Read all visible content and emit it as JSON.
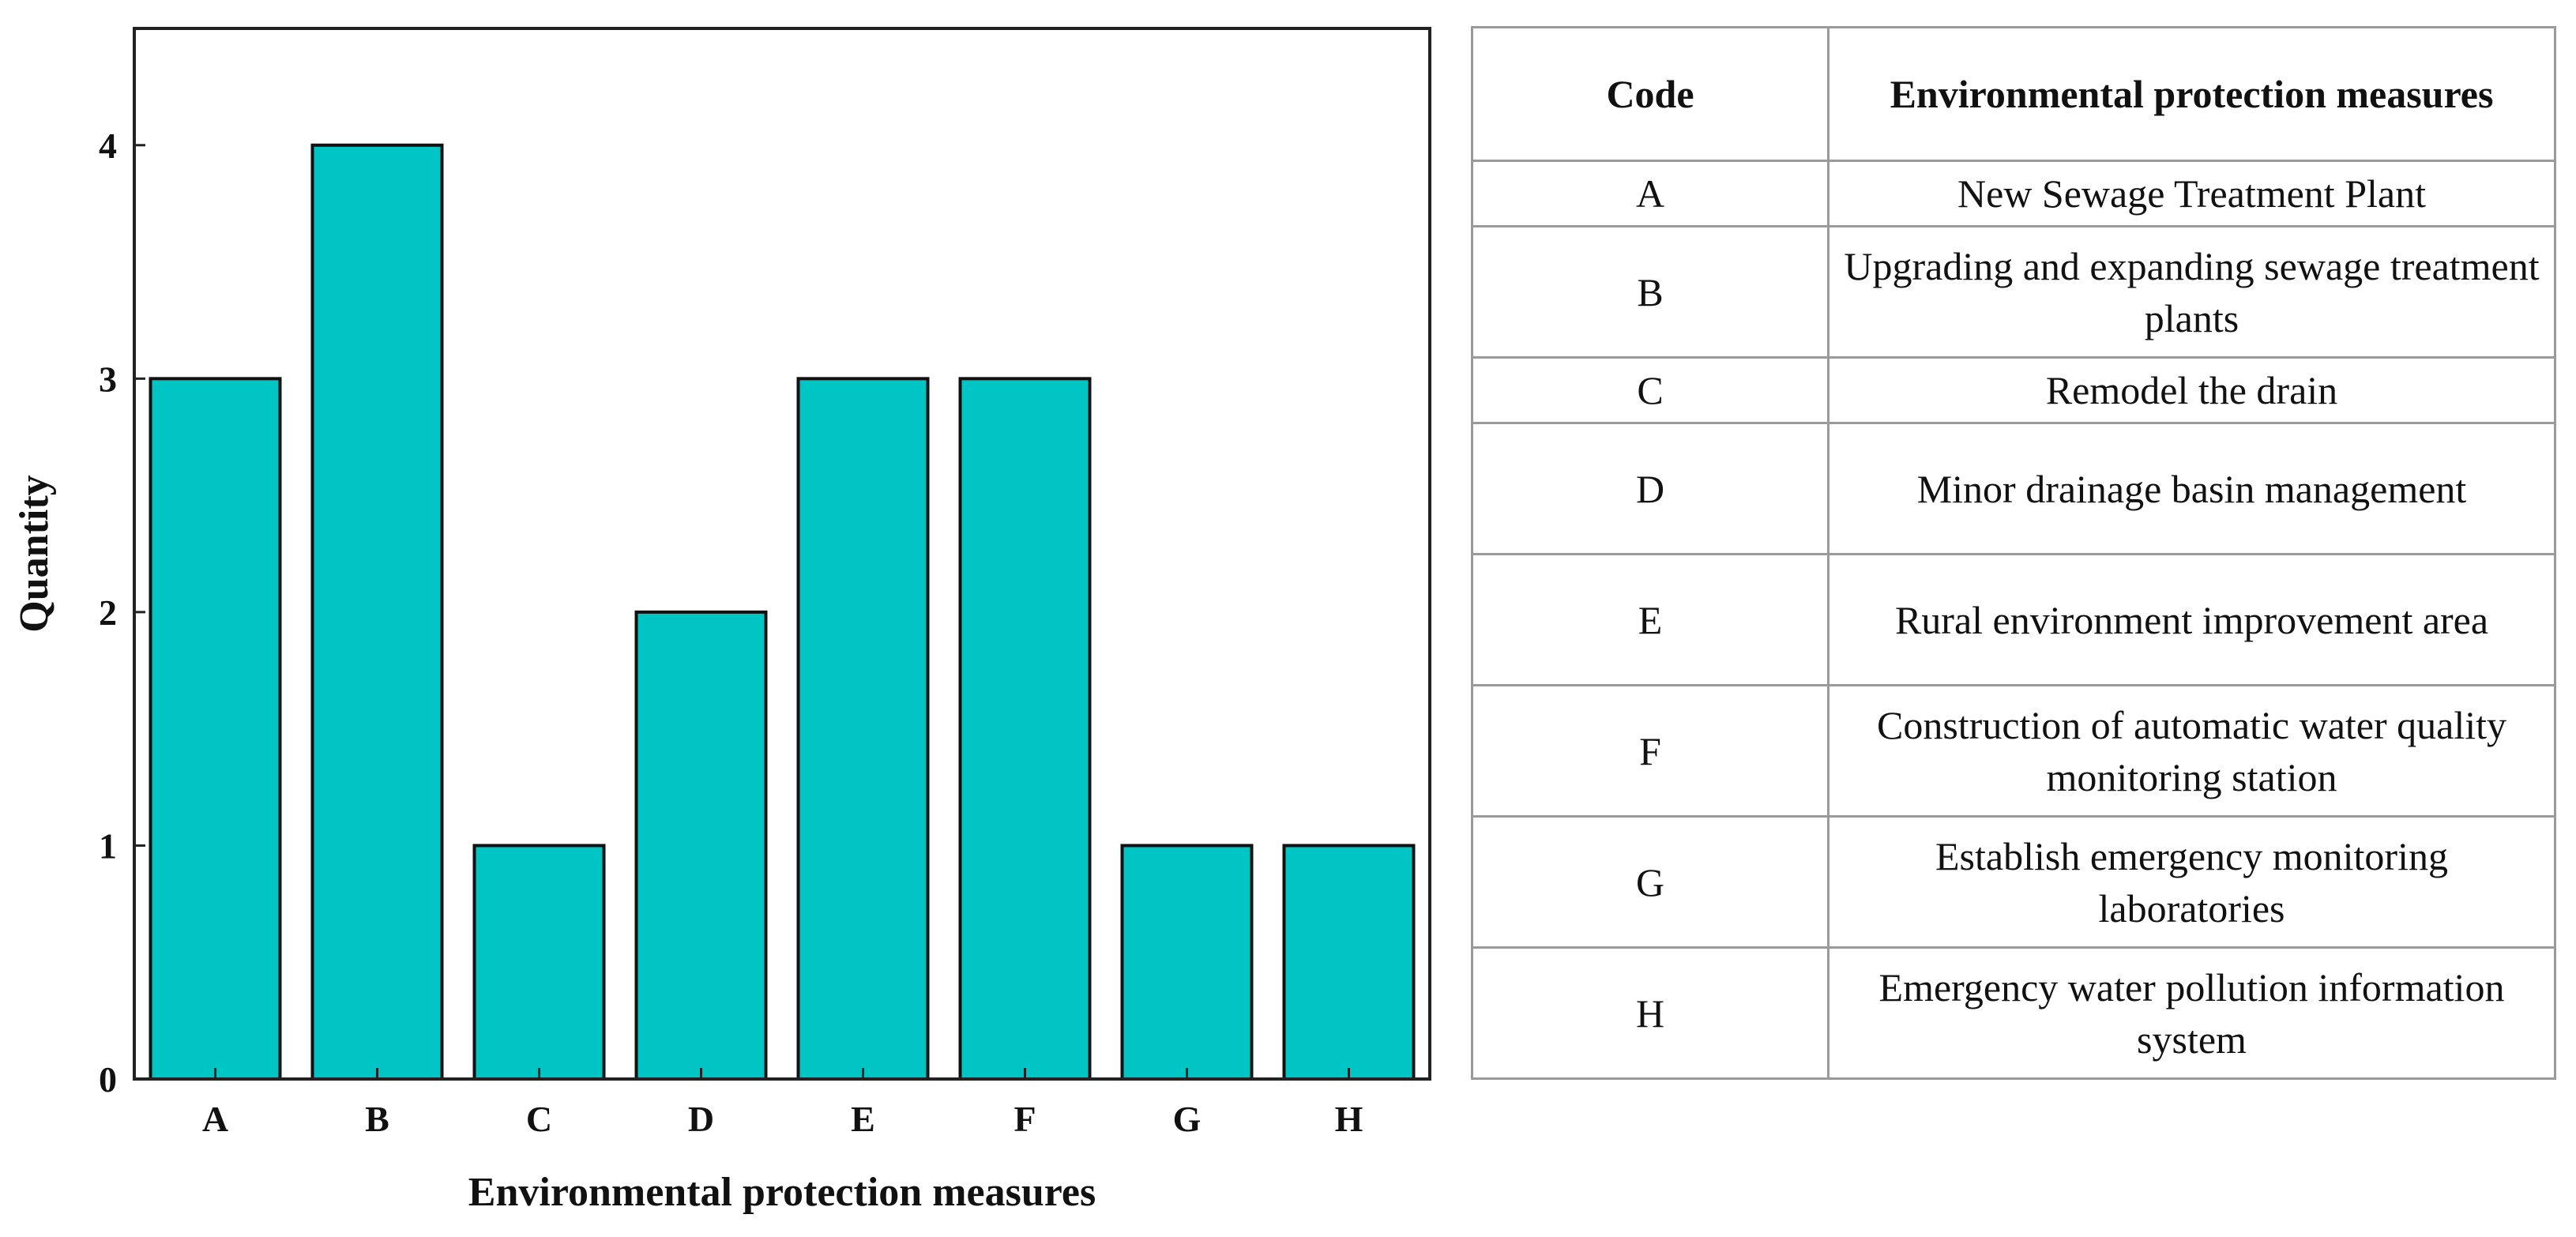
{
  "chart_data": {
    "type": "bar",
    "categories": [
      "A",
      "B",
      "C",
      "D",
      "E",
      "F",
      "G",
      "H"
    ],
    "values": [
      3,
      4,
      1,
      2,
      3,
      3,
      1,
      1
    ],
    "xlabel": "Environmental protection measures",
    "ylabel": "Quantity",
    "ylim": [
      0,
      4.5
    ],
    "yticks": [
      0,
      1,
      2,
      3,
      4
    ],
    "bar_color": "#00c5c5",
    "grid": false
  },
  "legend_table": {
    "headers": [
      "Code",
      "Environmental protection measures"
    ],
    "rows": [
      {
        "code": "A",
        "measure": "New Sewage Treatment Plant"
      },
      {
        "code": "B",
        "measure": "Upgrading and expanding sewage treatment plants"
      },
      {
        "code": "C",
        "measure": "Remodel the drain"
      },
      {
        "code": "D",
        "measure": "Minor drainage basin management"
      },
      {
        "code": "E",
        "measure": "Rural environment improvement area"
      },
      {
        "code": "F",
        "measure": "Construction of automatic water quality monitoring station"
      },
      {
        "code": "G",
        "measure": "Establish emergency monitoring laboratories"
      },
      {
        "code": "H",
        "measure": "Emergency water pollution information system"
      }
    ]
  }
}
